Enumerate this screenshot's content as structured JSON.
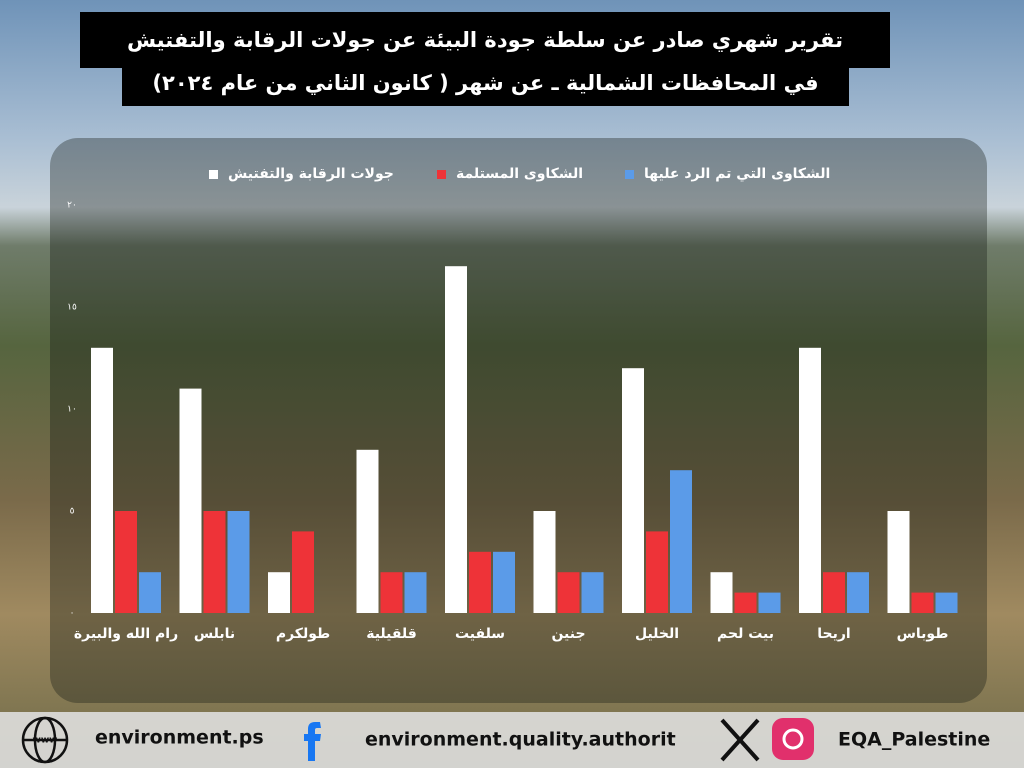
{
  "chart_data": {
    "type": "bar",
    "title": "تقرير شهري صادر عن سلطة جودة البيئة عن جولات الرقابة والتفتيش",
    "subtitle": "في المحافظات الشمالية ـ عن شهر ( كانون الثاني من عام ٢٠٢٤)",
    "categories": [
      "رام الله والبيرة",
      "نابلس",
      "طولكرم",
      "قلقيلية",
      "سلفيت",
      "جنين",
      "الخليل",
      "بيت لحم",
      "اريحا",
      "طوباس"
    ],
    "series": [
      {
        "name": "جولات الرقابة والتفتيش",
        "color": "#ffffff",
        "values": [
          13,
          11,
          2,
          8,
          17,
          5,
          12,
          2,
          13,
          5
        ]
      },
      {
        "name": "الشكاوى المستلمة",
        "color": "#ee3338",
        "values": [
          5,
          5,
          4,
          2,
          3,
          2,
          4,
          1,
          2,
          1
        ]
      },
      {
        "name": "الشكاوى التي تم الرد عليها",
        "color": "#5b9be8",
        "values": [
          2,
          5,
          0,
          2,
          3,
          2,
          7,
          1,
          2,
          1
        ]
      }
    ],
    "ylim": [
      0,
      20
    ],
    "yticks": [
      {
        "value": 0,
        "label": "٠"
      },
      {
        "value": 5,
        "label": "٥"
      },
      {
        "value": 10,
        "label": "١٠"
      },
      {
        "value": 15,
        "label": "١٥"
      },
      {
        "value": 20,
        "label": "٢٠"
      }
    ],
    "grid": false
  },
  "footer": {
    "website": "environment.ps",
    "facebook": "environment.quality.authorit",
    "social": "EQA_Palestine"
  }
}
